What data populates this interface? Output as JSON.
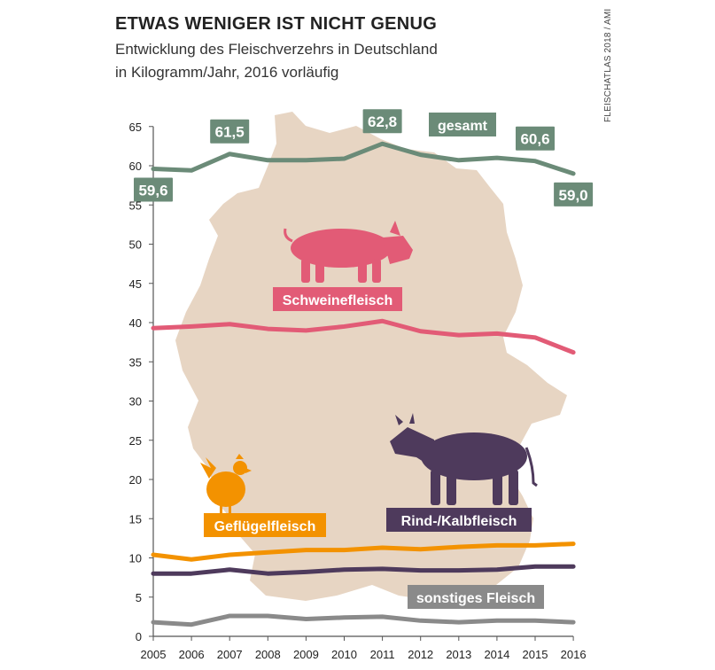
{
  "header": {
    "title": "ETWAS WENIGER IST NICHT GENUG",
    "subtitle_line1": "Entwicklung des Fleischverzehrs in Deutschland",
    "subtitle_line2": "in Kilogramm/Jahr, 2016 vorläufig",
    "credit": "FLEISCHATLAS 2018 / AMI"
  },
  "colors": {
    "map": "#e7d5c3",
    "gesamt": "#6b8b78",
    "schwein": "#e25b76",
    "gefluegel": "#f39200",
    "rind": "#4e3a5c",
    "sonstiges": "#8a8a8a",
    "axis": "#555555"
  },
  "icons": [
    "pig-icon",
    "cow-icon",
    "chicken-icon",
    "germany-map"
  ],
  "chart_data": {
    "type": "line",
    "x": [
      2005,
      2006,
      2007,
      2008,
      2009,
      2010,
      2011,
      2012,
      2013,
      2014,
      2015,
      2016
    ],
    "ylim": [
      0,
      65
    ],
    "yticks": [
      0,
      5,
      10,
      15,
      20,
      25,
      30,
      35,
      40,
      45,
      50,
      55,
      60,
      65
    ],
    "grid": false,
    "series": [
      {
        "key": "gesamt",
        "name": "gesamt",
        "color": "#6b8b78",
        "values": [
          59.6,
          59.4,
          61.5,
          60.7,
          60.7,
          60.9,
          62.8,
          61.4,
          60.7,
          61.0,
          60.6,
          59.0
        ],
        "labels": [
          {
            "year": 2005,
            "text": "59,6",
            "pos": "below"
          },
          {
            "year": 2007,
            "text": "61,5",
            "pos": "above"
          },
          {
            "year": 2011,
            "text": "62,8",
            "pos": "above"
          },
          {
            "year": 2015,
            "text": "60,6",
            "pos": "above"
          },
          {
            "year": 2016,
            "text": "59,0",
            "pos": "below"
          }
        ]
      },
      {
        "key": "schwein",
        "name": "Schweinefleisch",
        "color": "#e25b76",
        "values": [
          39.3,
          39.5,
          39.8,
          39.2,
          39.0,
          39.5,
          40.2,
          38.9,
          38.4,
          38.6,
          38.1,
          36.2
        ]
      },
      {
        "key": "gefluegel",
        "name": "Geflügelfleisch",
        "color": "#f39200",
        "values": [
          10.4,
          9.8,
          10.4,
          10.7,
          11.0,
          11.0,
          11.3,
          11.1,
          11.4,
          11.6,
          11.6,
          11.8
        ]
      },
      {
        "key": "rind",
        "name": "Rind-/Kalbfleisch",
        "color": "#4e3a5c",
        "values": [
          8.0,
          8.0,
          8.5,
          8.0,
          8.2,
          8.5,
          8.6,
          8.4,
          8.4,
          8.5,
          8.9,
          8.9
        ]
      },
      {
        "key": "sonstiges",
        "name": "sonstiges Fleisch",
        "color": "#8a8a8a",
        "values": [
          1.8,
          1.5,
          2.6,
          2.6,
          2.2,
          2.4,
          2.5,
          2.0,
          1.8,
          2.0,
          2.0,
          1.8
        ]
      }
    ]
  }
}
